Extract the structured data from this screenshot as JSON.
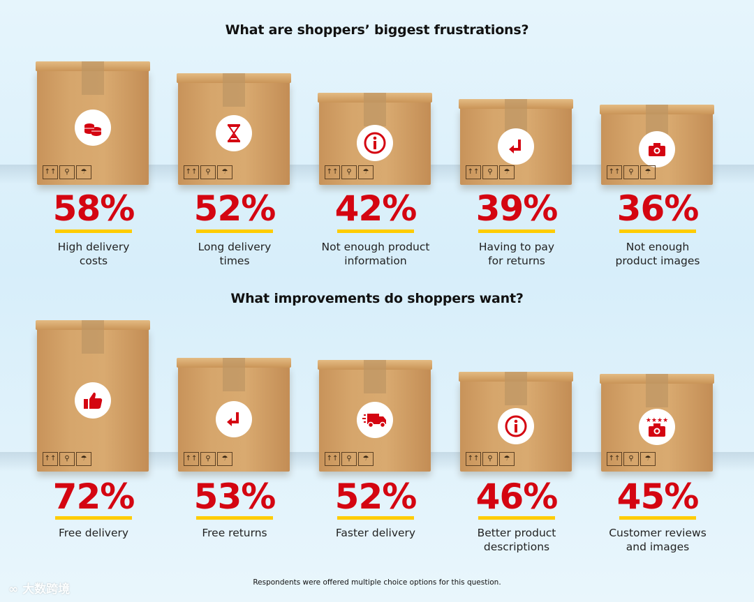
{
  "chart_data": [
    {
      "type": "bar",
      "title": "What are shoppers’ biggest frustrations?",
      "unit": "%",
      "categories": [
        "High delivery costs",
        "Long delivery times",
        "Not enough product information",
        "Having to pay for returns",
        "Not enough product images"
      ],
      "label_lines": [
        [
          "High delivery",
          "costs"
        ],
        [
          "Long delivery",
          "times"
        ],
        [
          "Not enough product",
          "information"
        ],
        [
          "Having to pay",
          "for returns"
        ],
        [
          "Not enough",
          "product images"
        ]
      ],
      "values": [
        58,
        52,
        42,
        39,
        36
      ],
      "value_labels": [
        "58%",
        "52%",
        "42%",
        "39%",
        "36%"
      ],
      "icons": [
        "coins-icon",
        "hourglass-icon",
        "info-icon",
        "return-arrow-icon",
        "camera-icon"
      ]
    },
    {
      "type": "bar",
      "title": "What improvements do shoppers want?",
      "unit": "%",
      "categories": [
        "Free delivery",
        "Free returns",
        "Faster delivery",
        "Better product descriptions",
        "Customer reviews and images"
      ],
      "label_lines": [
        [
          "Free delivery"
        ],
        [
          "Free returns"
        ],
        [
          "Faster delivery"
        ],
        [
          "Better product",
          "descriptions"
        ],
        [
          "Customer reviews",
          "and images"
        ]
      ],
      "values": [
        72,
        53,
        52,
        46,
        45
      ],
      "value_labels": [
        "72%",
        "53%",
        "52%",
        "46%",
        "45%"
      ],
      "icons": [
        "thumbs-up-icon",
        "return-arrow-icon",
        "delivery-truck-icon",
        "info-icon",
        "rated-camera-icon"
      ]
    }
  ],
  "footnote": "Respondents were offered multiple choice options for this question.",
  "watermark": "大数跨境",
  "handling_marks": [
    "↑↑",
    "⚲",
    "☂"
  ],
  "colors": {
    "accent": "#d40511",
    "underline": "#ffcc00"
  }
}
